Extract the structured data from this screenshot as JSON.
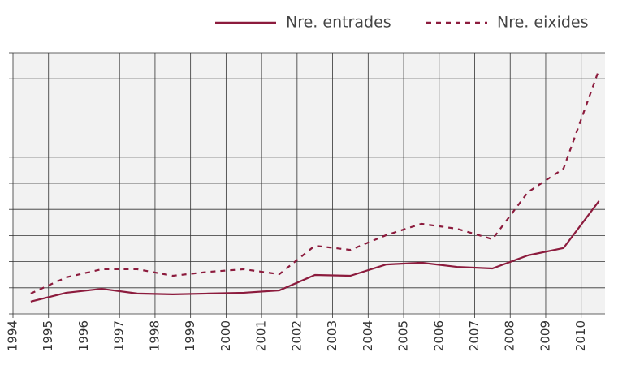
{
  "chart_data": {
    "type": "line",
    "x": [
      1994.5,
      1995.5,
      1996.5,
      1997.5,
      1998.5,
      1999.5,
      2000.5,
      2001.5,
      2002.5,
      2003.5,
      2004.5,
      2005.5,
      2006.5,
      2007.5,
      2008.5,
      2009.5,
      2010.5
    ],
    "series": [
      {
        "name": "Nre. entrades",
        "color": "#8c1b3d",
        "dash": false,
        "values": [
          0.47,
          0.81,
          0.96,
          0.78,
          0.75,
          0.78,
          0.81,
          0.9,
          1.49,
          1.46,
          1.89,
          1.96,
          1.8,
          1.74,
          2.24,
          2.52,
          4.32
        ]
      },
      {
        "name": "Nre. eixides",
        "color": "#8c1b3d",
        "dash": true,
        "values": [
          0.78,
          1.4,
          1.71,
          1.71,
          1.46,
          1.61,
          1.71,
          1.52,
          2.61,
          2.45,
          3.01,
          3.45,
          3.26,
          2.86,
          4.66,
          5.56,
          9.35
        ]
      }
    ],
    "xlim": [
      1994,
      2010.67
    ],
    "xticks": [
      1994,
      1995,
      1996,
      1997,
      1998,
      1999,
      2000,
      2001,
      2002,
      2003,
      2004,
      2005,
      2006,
      2007,
      2008,
      2009,
      2010
    ],
    "ylim": [
      0,
      10
    ],
    "yticks": [
      0,
      1,
      2,
      3,
      4,
      5,
      6,
      7,
      8,
      9,
      10
    ],
    "grid": true,
    "legend": "top-right"
  }
}
